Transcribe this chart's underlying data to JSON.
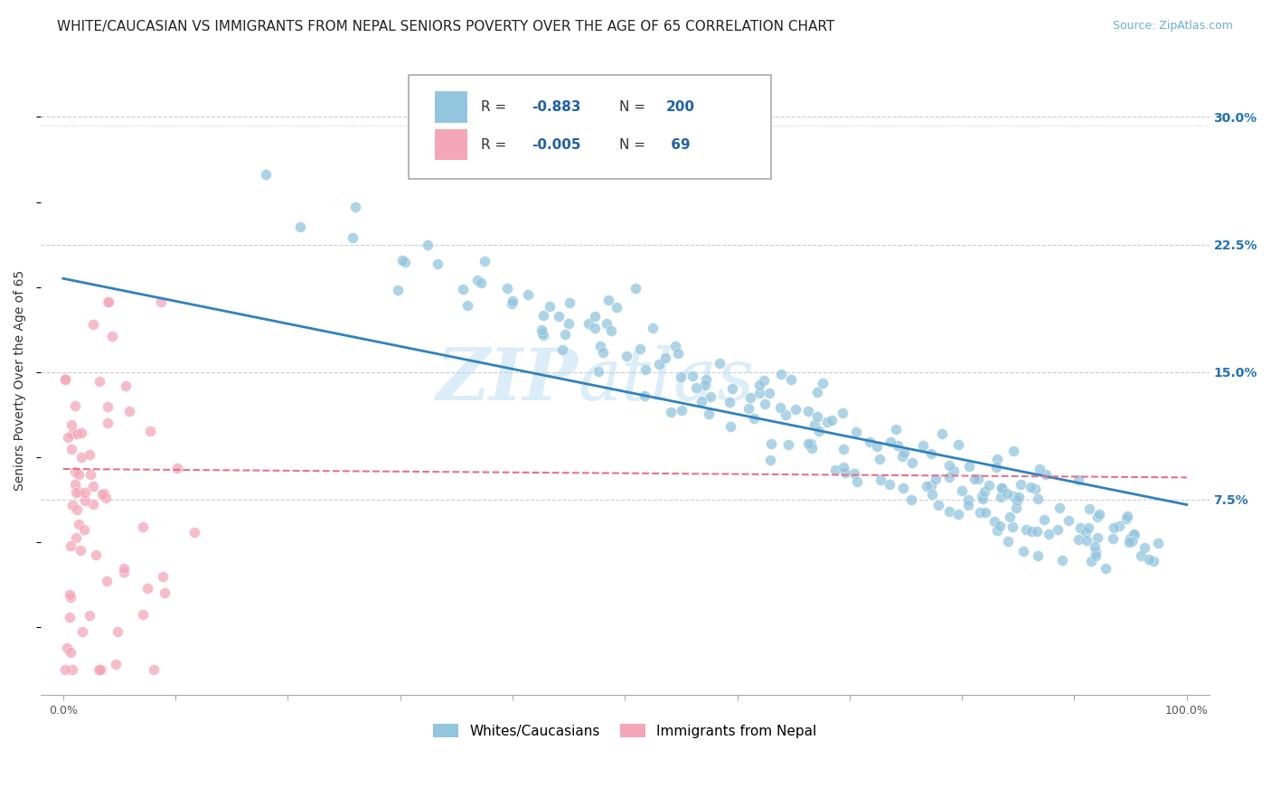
{
  "title": "WHITE/CAUCASIAN VS IMMIGRANTS FROM NEPAL SENIORS POVERTY OVER THE AGE OF 65 CORRELATION CHART",
  "source": "Source: ZipAtlas.com",
  "ylabel": "Seniors Poverty Over the Age of 65",
  "xlim": [
    -0.02,
    1.02
  ],
  "ylim": [
    -0.04,
    0.33
  ],
  "yticks": [
    0.075,
    0.15,
    0.225,
    0.3
  ],
  "ytick_labels": [
    "7.5%",
    "15.0%",
    "22.5%",
    "30.0%"
  ],
  "white_R": -0.883,
  "white_N": 200,
  "nepal_R": -0.005,
  "nepal_N": 69,
  "blue_color": "#92c5de",
  "pink_color": "#f4a6b8",
  "blue_line_color": "#3182bd",
  "pink_line_color": "#e8708a",
  "watermark_text": "ZIP",
  "watermark_text2": "atlas",
  "legend_labels": [
    "Whites/Caucasians",
    "Immigrants from Nepal"
  ],
  "legend_R1": "-0.883",
  "legend_N1": "200",
  "legend_R2": "-0.005",
  "legend_N2": " 69",
  "grid_color": "#cccccc",
  "background_color": "#ffffff",
  "title_fontsize": 11,
  "axis_fontsize": 10,
  "blue_trend_x0": 0.0,
  "blue_trend_y0": 0.205,
  "blue_trend_x1": 1.0,
  "blue_trend_y1": 0.072,
  "pink_trend_x0": 0.0,
  "pink_trend_y0": 0.093,
  "pink_trend_x1": 1.0,
  "pink_trend_y1": 0.088
}
